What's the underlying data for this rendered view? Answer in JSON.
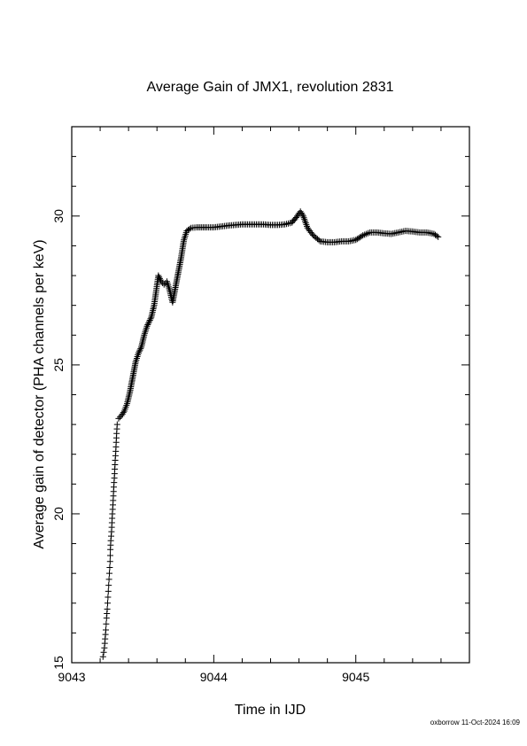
{
  "chart_data": {
    "type": "scatter",
    "title": "Average Gain of JMX1, revolution 2831",
    "xlabel": "Time in IJD",
    "ylabel": "Average gain of detector (PHA channels per keV)",
    "xlim": [
      9043,
      9045.8
    ],
    "ylim": [
      15,
      33
    ],
    "x_ticks": [
      9043,
      9044,
      9045
    ],
    "x_tick_labels": [
      "9043",
      "9044",
      "9045"
    ],
    "y_ticks": [
      15,
      20,
      25,
      30
    ],
    "y_tick_labels": [
      "15",
      "20",
      "25",
      "30"
    ],
    "grid": false,
    "marker": "+",
    "marker_color": "#000000",
    "series": [
      {
        "points": [
          [
            9043.22,
            15.2
          ],
          [
            9043.23,
            15.5
          ],
          [
            9043.235,
            15.8
          ],
          [
            9043.24,
            16.1
          ],
          [
            9043.245,
            16.5
          ],
          [
            9043.25,
            16.8
          ],
          [
            9043.255,
            17.2
          ],
          [
            9043.26,
            17.6
          ],
          [
            9043.265,
            18.0
          ],
          [
            9043.27,
            18.4
          ],
          [
            9043.272,
            18.8
          ],
          [
            9043.275,
            19.1
          ],
          [
            9043.28,
            19.4
          ],
          [
            9043.283,
            19.7
          ],
          [
            9043.286,
            20.0
          ],
          [
            9043.29,
            20.3
          ],
          [
            9043.293,
            20.6
          ],
          [
            9043.296,
            20.9
          ],
          [
            9043.3,
            21.2
          ],
          [
            9043.303,
            21.5
          ],
          [
            9043.306,
            21.8
          ],
          [
            9043.31,
            22.1
          ],
          [
            9043.313,
            22.4
          ],
          [
            9043.316,
            22.7
          ],
          [
            9043.32,
            23.0
          ],
          [
            9043.33,
            23.2
          ],
          [
            9043.35,
            23.3
          ],
          [
            9043.37,
            23.45
          ],
          [
            9043.39,
            23.7
          ],
          [
            9043.41,
            24.1
          ],
          [
            9043.43,
            24.6
          ],
          [
            9043.45,
            25.1
          ],
          [
            9043.47,
            25.4
          ],
          [
            9043.49,
            25.6
          ],
          [
            9043.51,
            26.0
          ],
          [
            9043.53,
            26.3
          ],
          [
            9043.56,
            26.6
          ],
          [
            9043.58,
            27.0
          ],
          [
            9043.595,
            27.5
          ],
          [
            9043.61,
            28.0
          ],
          [
            9043.63,
            27.8
          ],
          [
            9043.65,
            27.7
          ],
          [
            9043.67,
            27.8
          ],
          [
            9043.69,
            27.5
          ],
          [
            9043.71,
            27.1
          ],
          [
            9043.73,
            27.6
          ],
          [
            9043.75,
            28.1
          ],
          [
            9043.77,
            28.6
          ],
          [
            9043.79,
            29.2
          ],
          [
            9043.81,
            29.5
          ],
          [
            9043.84,
            29.6
          ],
          [
            9043.88,
            29.62
          ],
          [
            9043.95,
            29.62
          ],
          [
            9044.0,
            29.62
          ],
          [
            9044.05,
            29.65
          ],
          [
            9044.1,
            29.68
          ],
          [
            9044.15,
            29.7
          ],
          [
            9044.2,
            29.72
          ],
          [
            9044.25,
            29.72
          ],
          [
            9044.3,
            29.72
          ],
          [
            9044.35,
            29.72
          ],
          [
            9044.4,
            29.7
          ],
          [
            9044.45,
            29.7
          ],
          [
            9044.5,
            29.72
          ],
          [
            9044.55,
            29.78
          ],
          [
            9044.58,
            29.95
          ],
          [
            9044.61,
            30.15
          ],
          [
            9044.63,
            30.0
          ],
          [
            9044.66,
            29.6
          ],
          [
            9044.7,
            29.35
          ],
          [
            9044.75,
            29.15
          ],
          [
            9044.8,
            29.12
          ],
          [
            9044.85,
            29.12
          ],
          [
            9044.9,
            29.15
          ],
          [
            9044.95,
            29.15
          ],
          [
            9045.0,
            29.2
          ],
          [
            9045.05,
            29.35
          ],
          [
            9045.1,
            29.45
          ],
          [
            9045.15,
            29.45
          ],
          [
            9045.2,
            29.42
          ],
          [
            9045.25,
            29.4
          ],
          [
            9045.3,
            29.45
          ],
          [
            9045.35,
            29.5
          ],
          [
            9045.4,
            29.48
          ],
          [
            9045.45,
            29.45
          ],
          [
            9045.5,
            29.45
          ],
          [
            9045.55,
            29.4
          ],
          [
            9045.58,
            29.3
          ]
        ]
      }
    ]
  },
  "footer": "oxborrow 11-Oct-2024 16:09"
}
